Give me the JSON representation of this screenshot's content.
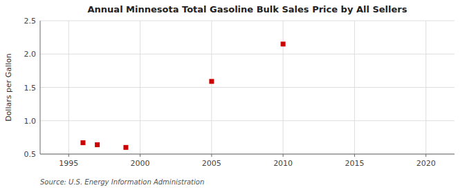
{
  "chart_data": {
    "type": "scatter",
    "title": "Annual Minnesota Total Gasoline Bulk Sales Price by All Sellers",
    "y_label": "Dollars per Gallon",
    "annotations": [
      "Source: U.S. Energy Information Administration"
    ],
    "x": [
      1996,
      1997,
      1999,
      2005,
      2010
    ],
    "values": [
      0.67,
      0.64,
      0.6,
      1.59,
      2.15
    ],
    "color": "#cc0000",
    "marker": "square",
    "xlim": [
      1993,
      2022
    ],
    "ylim": [
      0.5,
      2.5
    ],
    "xticks": [
      1995,
      2000,
      2005,
      2010,
      2015,
      2020
    ],
    "yticks": [
      0.5,
      {
        "value": 1.0,
        "label": "1.0"
      },
      1.5,
      {
        "value": 2.0,
        "label": "2.0"
      },
      2.5
    ],
    "grid": true
  }
}
